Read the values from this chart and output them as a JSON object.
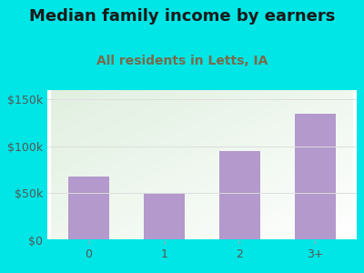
{
  "title": "Median family income by earners",
  "subtitle": "All residents in Letts, IA",
  "categories": [
    "0",
    "1",
    "2",
    "3+"
  ],
  "values": [
    68000,
    50000,
    95000,
    135000
  ],
  "bar_color": "#b399cc",
  "background_color": "#00e5e5",
  "title_color": "#1a1a1a",
  "subtitle_color": "#7a6a4a",
  "tick_label_color": "#555555",
  "yticks": [
    0,
    50000,
    100000,
    150000
  ],
  "ytick_labels": [
    "$0",
    "$50k",
    "$100k",
    "$150k"
  ],
  "ylim": [
    0,
    160000
  ],
  "title_fontsize": 13,
  "subtitle_fontsize": 10,
  "tick_fontsize": 9,
  "grid_color": "#dddddd",
  "bottom_spine_color": "#00e5e5"
}
